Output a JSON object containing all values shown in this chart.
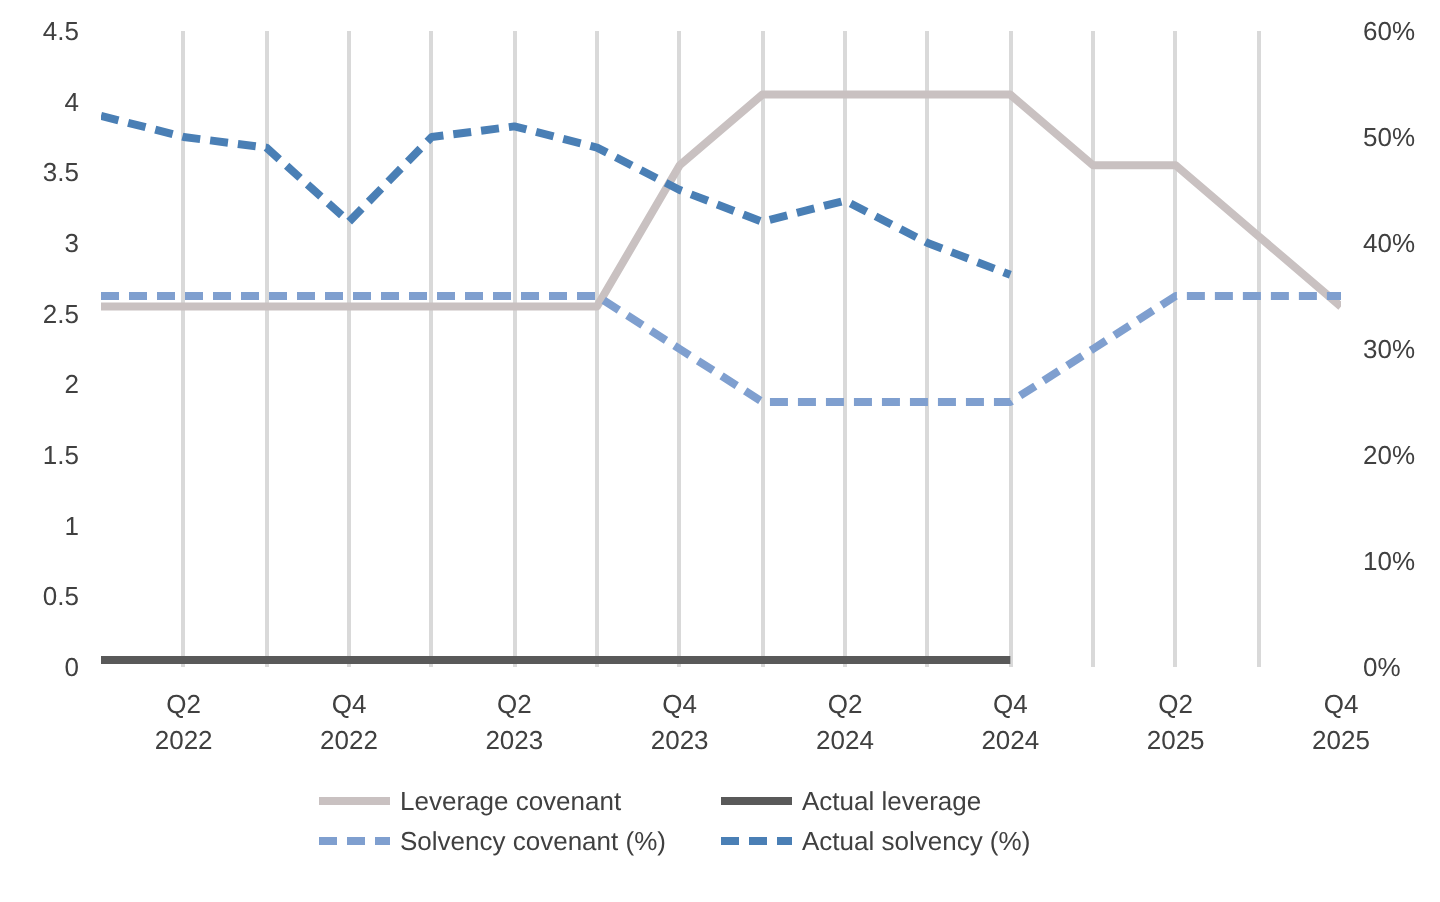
{
  "chart_data": {
    "type": "line",
    "categories": [
      null,
      "Q2\n2022",
      null,
      "Q4\n2022",
      null,
      "Q2\n2023",
      null,
      "Q4\n2023",
      null,
      "Q2\n2024",
      null,
      "Q4\n2024",
      null,
      "Q2\n2025",
      null,
      "Q4\n2025"
    ],
    "series": [
      {
        "name": "Leverage covenant",
        "color": "#c9c1c1",
        "line_style": "solid",
        "values": [
          2.55,
          2.55,
          2.55,
          2.55,
          2.55,
          2.55,
          2.55,
          3.55,
          4.05,
          4.05,
          4.05,
          4.05,
          3.55,
          3.55,
          3.05,
          2.55
        ]
      },
      {
        "name": "Solvency covenant (%)",
        "color": "#7f9fcf",
        "line_style": "dashed",
        "axis": "y2",
        "values": [
          35,
          35,
          35,
          35,
          35,
          35,
          35,
          30,
          25,
          25,
          25,
          25,
          30,
          35,
          35,
          35
        ]
      },
      {
        "name": "Actual leverage",
        "color": "#595959",
        "line_style": "solid",
        "values": [
          0.05,
          0.05,
          0.05,
          0.05,
          0.05,
          0.05,
          0.05,
          0.05,
          0.05,
          0.05,
          0.05,
          0.05,
          null,
          null,
          null,
          null
        ]
      },
      {
        "name": "Actual solvency (%)",
        "color": "#4a7fb5",
        "line_style": "dashed",
        "axis": "y2",
        "values": [
          52,
          50,
          49,
          42,
          50,
          51,
          49,
          45,
          42,
          44,
          40,
          37,
          null,
          null,
          null,
          null
        ]
      }
    ],
    "ylim": [
      0,
      4.5
    ],
    "yticks": [
      0,
      0.5,
      1,
      1.5,
      2,
      2.5,
      3,
      3.5,
      4,
      4.5
    ],
    "y2lim": [
      0,
      60
    ],
    "y2ticks": [
      {
        "value": 0,
        "label": "0%"
      },
      {
        "value": 10,
        "label": "10%"
      },
      {
        "value": 20,
        "label": "20%"
      },
      {
        "value": 30,
        "label": "30%"
      },
      {
        "value": 40,
        "label": "40%"
      },
      {
        "value": 50,
        "label": "50%"
      },
      {
        "value": 60,
        "label": "60%"
      }
    ],
    "grid": "x",
    "legend": "bottom"
  }
}
